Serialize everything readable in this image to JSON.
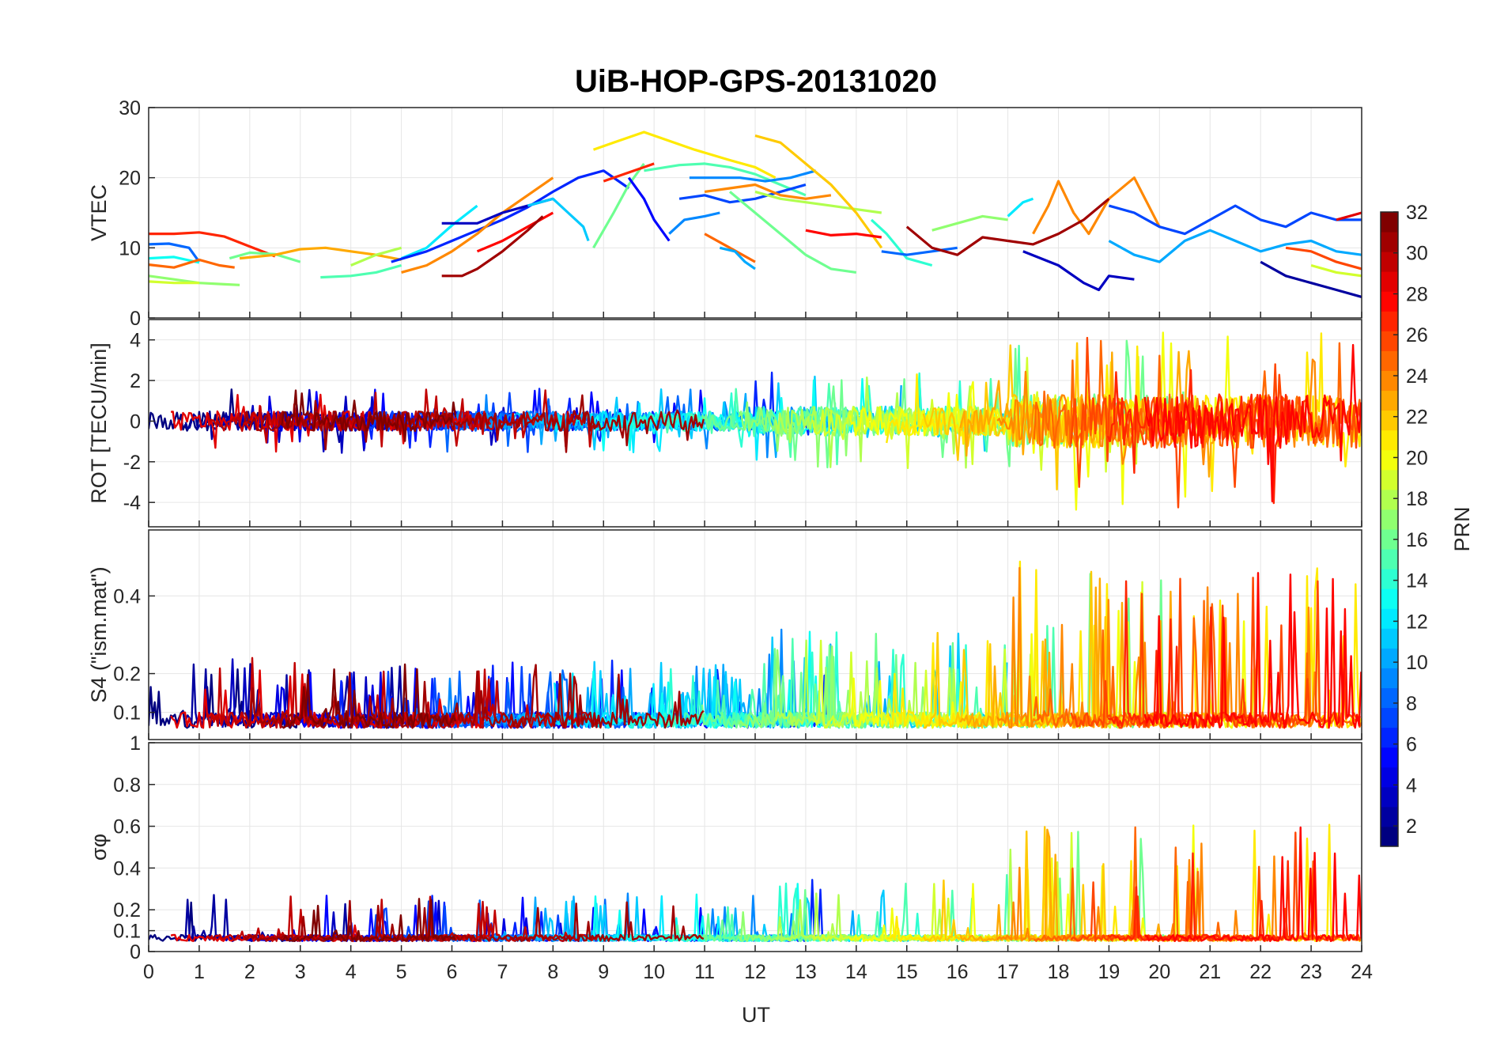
{
  "chart_data": {
    "type": "line",
    "title": "UiB-HOP-GPS-20131020",
    "xlabel": "UT",
    "xlim": [
      0,
      24
    ],
    "x_ticks": [
      "0",
      "1",
      "2",
      "3",
      "4",
      "5",
      "6",
      "7",
      "8",
      "9",
      "10",
      "11",
      "12",
      "13",
      "14",
      "15",
      "16",
      "17",
      "18",
      "19",
      "20",
      "21",
      "22",
      "23",
      "24"
    ],
    "grid": true,
    "colorbar": {
      "label": "PRN",
      "range": [
        1,
        32
      ],
      "ticks": [
        "2",
        "4",
        "6",
        "8",
        "10",
        "12",
        "14",
        "16",
        "18",
        "20",
        "22",
        "24",
        "26",
        "28",
        "30",
        "32"
      ],
      "colormap": "jet",
      "placement": "right"
    },
    "panels": [
      {
        "name": "vtec",
        "ylabel": "VTEC",
        "ylim": [
          0,
          30
        ],
        "y_ticks": [
          "0",
          "10",
          "20",
          "30"
        ],
        "series": [
          {
            "prn": 27,
            "x": [
              0.0,
              0.5,
              1.0,
              1.5,
              2.0,
              2.5
            ],
            "y": [
              12,
              12,
              12.2,
              11.6,
              10.2,
              8.8
            ]
          },
          {
            "prn": 8,
            "x": [
              0.0,
              0.4,
              0.8,
              1.0
            ],
            "y": [
              10.5,
              10.6,
              10.0,
              8.0
            ]
          },
          {
            "prn": 13,
            "x": [
              0.0,
              0.5,
              1.0
            ],
            "y": [
              8.5,
              8.7,
              7.9
            ]
          },
          {
            "prn": 25,
            "x": [
              0.0,
              0.5,
              1.0,
              1.4,
              1.7
            ],
            "y": [
              7.6,
              7.2,
              8.3,
              7.5,
              7.2
            ]
          },
          {
            "prn": 17,
            "x": [
              0.0,
              0.5,
              1.0,
              1.5,
              1.8
            ],
            "y": [
              6.0,
              5.5,
              5.0,
              4.8,
              4.7
            ]
          },
          {
            "prn": 19,
            "x": [
              0.0,
              0.5,
              1.0
            ],
            "y": [
              5.2,
              5.0,
              5.0
            ]
          },
          {
            "prn": 16,
            "x": [
              1.6,
              2.0,
              2.5,
              3.0
            ],
            "y": [
              8.5,
              9.3,
              9.1,
              8.0
            ]
          },
          {
            "prn": 23,
            "x": [
              1.8,
              2.5,
              3.0,
              3.5,
              4.0,
              4.5,
              5.0
            ],
            "y": [
              8.5,
              9.0,
              9.8,
              10.0,
              9.5,
              9.0,
              8.3
            ]
          },
          {
            "prn": 15,
            "x": [
              3.4,
              4.0,
              4.5,
              5.0
            ],
            "y": [
              5.8,
              6.0,
              6.5,
              7.5
            ]
          },
          {
            "prn": 18,
            "x": [
              4.0,
              4.5,
              5.0
            ],
            "y": [
              7.5,
              9.0,
              10.0
            ]
          },
          {
            "prn": 12,
            "x": [
              5.0,
              5.5,
              6.0,
              6.5
            ],
            "y": [
              8.5,
              10.0,
              13.2,
              16.0
            ]
          },
          {
            "prn": 6,
            "x": [
              4.8,
              5.5,
              6.0,
              6.5,
              7.0,
              7.5,
              8.0,
              8.5,
              9.0,
              9.5
            ],
            "y": [
              8.0,
              9.5,
              11.0,
              12.5,
              14.0,
              15.8,
              18.0,
              20.0,
              21.0,
              18.5
            ]
          },
          {
            "prn": 24,
            "x": [
              5.0,
              5.5,
              6.0,
              6.5,
              7.0,
              7.5,
              8.0
            ],
            "y": [
              6.5,
              7.5,
              9.5,
              12.0,
              15.0,
              17.5,
              20.0
            ]
          },
          {
            "prn": 28,
            "x": [
              6.5,
              7.0,
              7.5,
              8.0
            ],
            "y": [
              9.5,
              11.0,
              13.0,
              15.0
            ]
          },
          {
            "prn": 31,
            "x": [
              5.8,
              6.2,
              6.5,
              7.0,
              7.5,
              7.8
            ],
            "y": [
              6.0,
              6.0,
              7.0,
              9.5,
              12.5,
              14.5
            ]
          },
          {
            "prn": 3,
            "x": [
              5.8,
              6.5,
              7.0,
              7.5,
              8.0
            ],
            "y": [
              13.5,
              13.5,
              15.0,
              16.0,
              17.0
            ]
          },
          {
            "prn": 11,
            "x": [
              7.5,
              8.0,
              8.3,
              8.6,
              8.7
            ],
            "y": [
              16.0,
              17.0,
              15.0,
              13.0,
              11.0
            ]
          },
          {
            "prn": 16,
            "x": [
              8.8,
              9.2,
              9.5,
              9.8
            ],
            "y": [
              10.0,
              15.0,
              19.0,
              22.0
            ]
          },
          {
            "prn": 21,
            "x": [
              8.8,
              9.2,
              9.8,
              10.2,
              10.8,
              11.5,
              12.0,
              12.4
            ],
            "y": [
              24.0,
              25.0,
              26.5,
              25.5,
              24.0,
              22.5,
              21.5,
              20.0
            ]
          },
          {
            "prn": 27,
            "x": [
              9.0,
              9.4,
              9.8,
              10.0
            ],
            "y": [
              19.5,
              20.5,
              21.5,
              22.0
            ]
          },
          {
            "prn": 15,
            "x": [
              9.8,
              10.5,
              11.0,
              11.5,
              12.0,
              12.5,
              13.0
            ],
            "y": [
              21.0,
              21.8,
              22.0,
              21.5,
              20.5,
              19.0,
              17.5
            ]
          },
          {
            "prn": 5,
            "x": [
              9.5,
              9.8,
              10.0,
              10.3
            ],
            "y": [
              20.0,
              17.0,
              14.0,
              11.0
            ]
          },
          {
            "prn": 9,
            "x": [
              10.3,
              10.6,
              11.0,
              11.3
            ],
            "y": [
              12.0,
              14.0,
              14.5,
              15.0
            ]
          },
          {
            "prn": 7,
            "x": [
              10.5,
              11.0,
              11.5,
              12.0,
              12.5,
              13.0
            ],
            "y": [
              17.0,
              17.5,
              16.5,
              17.0,
              18.0,
              19.0
            ]
          },
          {
            "prn": 9,
            "x": [
              10.7,
              11.2,
              11.7,
              12.2,
              12.7,
              13.2
            ],
            "y": [
              20.0,
              20.0,
              20.0,
              19.5,
              20.0,
              21.0
            ]
          },
          {
            "prn": 25,
            "x": [
              11.0,
              11.5,
              12.0
            ],
            "y": [
              12.0,
              10.0,
              8.0
            ]
          },
          {
            "prn": 10,
            "x": [
              11.3,
              11.6,
              11.8,
              12.0
            ],
            "y": [
              10.0,
              9.5,
              8.0,
              7.0
            ]
          },
          {
            "prn": 24,
            "x": [
              11.0,
              11.5,
              12.0,
              12.5,
              13.0,
              13.5
            ],
            "y": [
              18.0,
              18.5,
              19.0,
              17.5,
              17.0,
              17.5
            ]
          },
          {
            "prn": 16,
            "x": [
              11.5,
              12.0,
              12.5,
              13.0,
              13.5,
              14.0
            ],
            "y": [
              18.0,
              15.0,
              12.0,
              9.0,
              7.0,
              6.5
            ]
          },
          {
            "prn": 18,
            "x": [
              12.0,
              12.5,
              13.0,
              13.5,
              14.0,
              14.5
            ],
            "y": [
              18.0,
              17.0,
              16.5,
              16.0,
              15.5,
              15.0
            ]
          },
          {
            "prn": 22,
            "x": [
              12.0,
              12.5,
              13.0,
              13.5,
              14.0,
              14.5
            ],
            "y": [
              26.0,
              25.0,
              22.0,
              19.0,
              15.0,
              10.0
            ]
          },
          {
            "prn": 28,
            "x": [
              13.0,
              13.5,
              14.0,
              14.5
            ],
            "y": [
              12.5,
              11.8,
              12.0,
              11.5
            ]
          },
          {
            "prn": 14,
            "x": [
              14.3,
              14.6,
              15.0,
              15.5
            ],
            "y": [
              14.0,
              12.0,
              8.5,
              7.5
            ]
          },
          {
            "prn": 8,
            "x": [
              14.5,
              15.0,
              15.5,
              16.0
            ],
            "y": [
              9.5,
              9.0,
              9.5,
              10.0
            ]
          },
          {
            "prn": 31,
            "x": [
              15.0,
              15.5,
              16.0,
              16.5,
              17.0
            ],
            "y": [
              13.0,
              10.0,
              9.0,
              11.5,
              11.0
            ]
          },
          {
            "prn": 17,
            "x": [
              15.5,
              16.0,
              16.5,
              17.0
            ],
            "y": [
              12.5,
              13.5,
              14.5,
              14.0
            ]
          },
          {
            "prn": 12,
            "x": [
              17.0,
              17.3,
              17.5
            ],
            "y": [
              14.5,
              16.5,
              17.0
            ]
          },
          {
            "prn": 3,
            "x": [
              17.3,
              18.0,
              18.5,
              18.8,
              19.0,
              19.5
            ],
            "y": [
              9.5,
              7.5,
              5.0,
              4.0,
              6.0,
              5.5
            ]
          },
          {
            "prn": 24,
            "x": [
              17.5,
              17.8,
              18.0,
              18.3,
              18.6,
              19.0,
              19.5,
              20.0
            ],
            "y": [
              12.0,
              16.0,
              19.5,
              15.0,
              12.0,
              17.0,
              20.0,
              13.0
            ]
          },
          {
            "prn": 31,
            "x": [
              17.0,
              17.5,
              18.0,
              18.5,
              19.0
            ],
            "y": [
              11.0,
              10.5,
              12.0,
              14.0,
              17.0
            ]
          },
          {
            "prn": 10,
            "x": [
              19.0,
              19.5,
              20.0,
              20.5,
              21.0,
              21.5,
              22.0,
              22.5,
              23.0,
              23.5,
              24.0
            ],
            "y": [
              11.0,
              9.0,
              8.0,
              11.0,
              12.5,
              11.0,
              9.5,
              10.5,
              11.0,
              9.5,
              9.0
            ]
          },
          {
            "prn": 7,
            "x": [
              19.0,
              19.5,
              20.0,
              20.5,
              21.0,
              21.5,
              22.0,
              22.5,
              23.0,
              23.5,
              24.0
            ],
            "y": [
              16.0,
              15.0,
              13.0,
              12.0,
              14.0,
              16.0,
              14.0,
              13.0,
              15.0,
              14.0,
              14.0
            ]
          },
          {
            "prn": 2,
            "x": [
              22.0,
              22.5,
              23.0,
              23.5,
              24.0
            ],
            "y": [
              8.0,
              6.0,
              5.0,
              4.0,
              3.0
            ]
          },
          {
            "prn": 26,
            "x": [
              22.5,
              23.0,
              23.5,
              24.0
            ],
            "y": [
              10.0,
              9.5,
              8.0,
              7.0
            ]
          },
          {
            "prn": 19,
            "x": [
              23.0,
              23.5,
              24.0
            ],
            "y": [
              7.5,
              6.5,
              6.0
            ]
          },
          {
            "prn": 29,
            "x": [
              23.5,
              24.0
            ],
            "y": [
              14.0,
              15.0
            ]
          }
        ]
      },
      {
        "name": "rot",
        "ylabel": "ROT [TECU/min]",
        "ylim": [
          -5.2,
          5.0
        ],
        "y_ticks": [
          "-4",
          "-2",
          "0",
          "2",
          "4"
        ]
      },
      {
        "name": "s4",
        "ylabel": "S4 (\"ism.mat\")",
        "ylim": [
          0.03,
          0.57
        ],
        "y_ticks": [
          "0.1",
          "0.2",
          "0.4"
        ]
      },
      {
        "name": "sigma-phi",
        "ylabel": "σφ",
        "ylim": [
          0,
          1
        ],
        "y_ticks": [
          "0",
          "0.1",
          "0.2",
          "0.4",
          "0.6",
          "0.8",
          "1"
        ]
      }
    ]
  }
}
